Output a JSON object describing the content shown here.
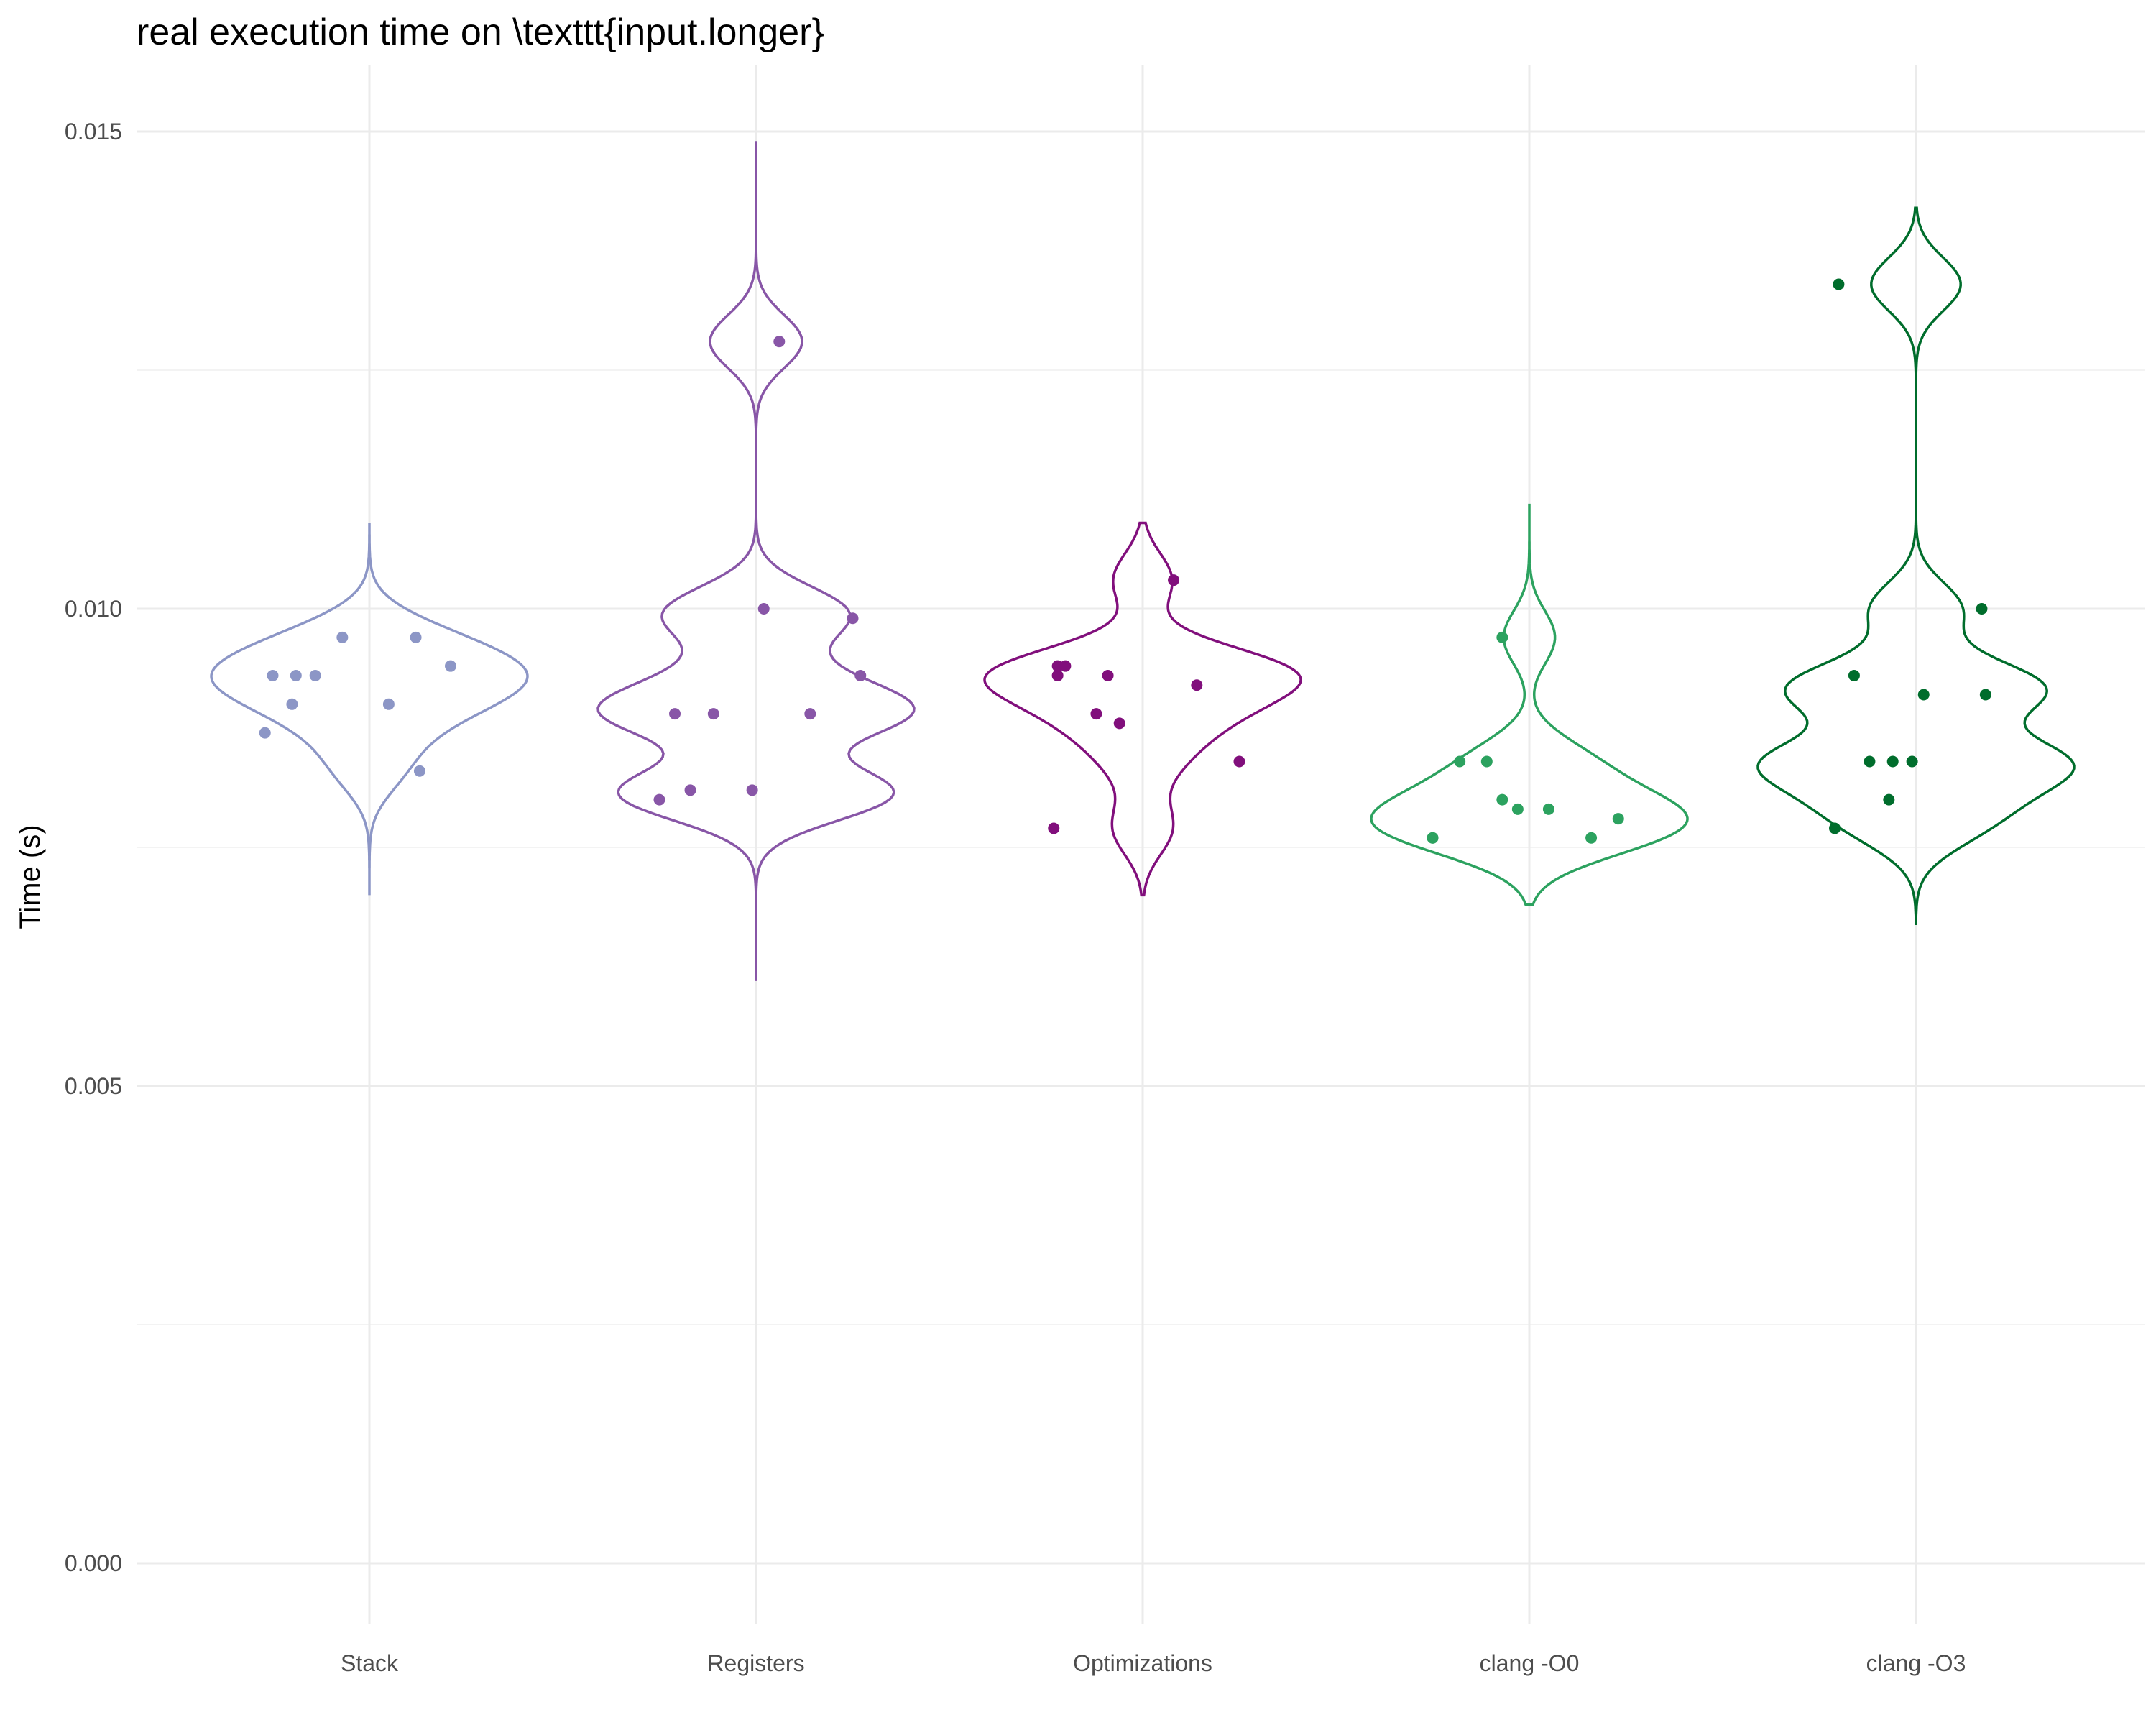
{
  "chart_data": {
    "type": "violin",
    "title": "real execution time on \\texttt{input.longer}",
    "xlabel": "",
    "ylabel": "Time (s)",
    "ylim": [
      0,
      0.015
    ],
    "yticks": [
      "0.000",
      "0.005",
      "0.010",
      "0.015"
    ],
    "grid": true,
    "legend": "none",
    "categories": [
      "Stack",
      "Registers",
      "Optimizations",
      "clang -O0",
      "clang -O3"
    ],
    "series": [
      {
        "category": "Stack",
        "color": "#8c96c6",
        "range": [
          0.007,
          0.0109
        ],
        "points": [
          [
            -0.27,
            0.0087
          ],
          [
            -0.25,
            0.0093
          ],
          [
            -0.2,
            0.009
          ],
          [
            -0.19,
            0.0093
          ],
          [
            -0.14,
            0.0093
          ],
          [
            -0.07,
            0.0097
          ],
          [
            0.05,
            0.009
          ],
          [
            0.12,
            0.0097
          ],
          [
            0.13,
            0.0083
          ],
          [
            0.21,
            0.0094
          ]
        ]
      },
      {
        "category": "Registers",
        "color": "#8856a7",
        "range": [
          0.0061,
          0.0149
        ],
        "points": [
          [
            -0.25,
            0.008
          ],
          [
            -0.21,
            0.0089
          ],
          [
            -0.17,
            0.0081
          ],
          [
            -0.11,
            0.0089
          ],
          [
            -0.01,
            0.0081
          ],
          [
            0.02,
            0.01
          ],
          [
            0.06,
            0.0128
          ],
          [
            0.14,
            0.0089
          ],
          [
            0.25,
            0.0099
          ],
          [
            0.27,
            0.0093
          ]
        ]
      },
      {
        "category": "Optimizations",
        "color": "#810f7c",
        "range": [
          0.007,
          0.0109
        ],
        "points": [
          [
            -0.23,
            0.0077
          ],
          [
            -0.22,
            0.0093
          ],
          [
            -0.22,
            0.0094
          ],
          [
            -0.2,
            0.0094
          ],
          [
            -0.12,
            0.0089
          ],
          [
            -0.09,
            0.0093
          ],
          [
            -0.06,
            0.0088
          ],
          [
            0.08,
            0.0103
          ],
          [
            0.14,
            0.0092
          ],
          [
            0.25,
            0.0084
          ]
        ]
      },
      {
        "category": "clang -O0",
        "color": "#2ca25f",
        "range": [
          0.0069,
          0.0111
        ],
        "points": [
          [
            -0.25,
            0.0076
          ],
          [
            -0.25,
            0.0076
          ],
          [
            -0.18,
            0.0084
          ],
          [
            -0.11,
            0.0084
          ],
          [
            -0.07,
            0.0097
          ],
          [
            -0.07,
            0.008
          ],
          [
            -0.03,
            0.0079
          ],
          [
            0.05,
            0.0079
          ],
          [
            0.16,
            0.0076
          ],
          [
            0.23,
            0.0078
          ]
        ]
      },
      {
        "category": "clang -O3",
        "color": "#006d2c",
        "range": [
          0.0067,
          0.0142
        ],
        "points": [
          [
            -0.21,
            0.0077
          ],
          [
            -0.2,
            0.0134
          ],
          [
            -0.16,
            0.0093
          ],
          [
            -0.12,
            0.0084
          ],
          [
            -0.07,
            0.008
          ],
          [
            -0.06,
            0.0084
          ],
          [
            -0.01,
            0.0084
          ],
          [
            0.02,
            0.0091
          ],
          [
            0.17,
            0.01
          ],
          [
            0.18,
            0.0091
          ]
        ]
      }
    ]
  }
}
